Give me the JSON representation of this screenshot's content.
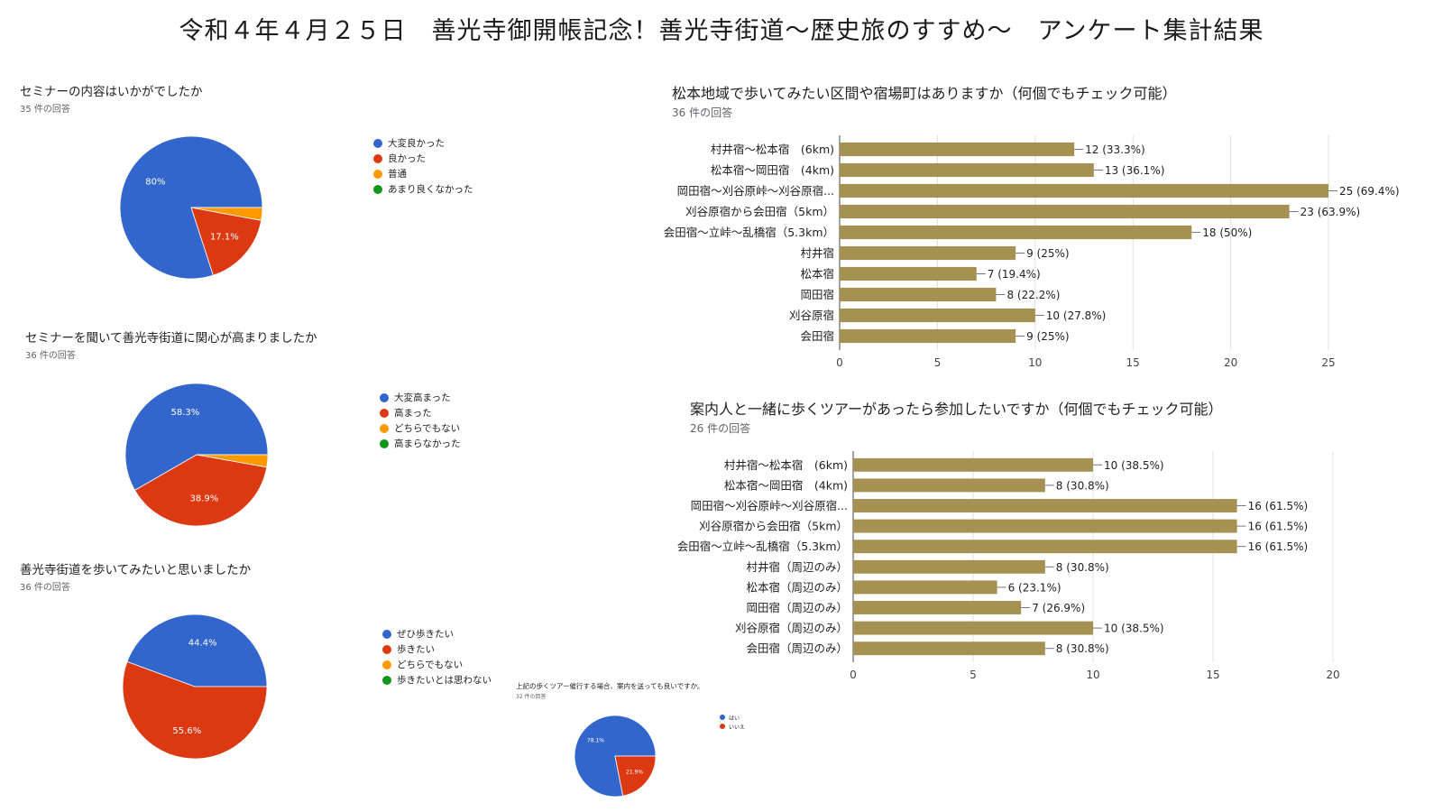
{
  "page_title": "令和４年４月２５日　善光寺御開帳記念！善光寺街道～歴史旅のすすめ～　アンケート集計結果",
  "colors": {
    "blue": "#3366cc",
    "red": "#dc3912",
    "orange": "#ff9900",
    "green": "#109618",
    "bar": "#a59152"
  },
  "chart_data": [
    {
      "type": "pie",
      "title": "セミナーの内容はいかがでしたか",
      "count_label": "35 件の回答",
      "categories": [
        "大変良かった",
        "良かった",
        "普通",
        "あまり良くなかった"
      ],
      "values": [
        80,
        17.1,
        2.9,
        0
      ],
      "labels": [
        "80%",
        "17.1%",
        "",
        ""
      ]
    },
    {
      "type": "pie",
      "title": "セミナーを聞いて善光寺街道に関心が高まりましたか",
      "count_label": "36 件の回答",
      "categories": [
        "大変高まった",
        "高まった",
        "どちらでもない",
        "高まらなかった"
      ],
      "values": [
        58.3,
        38.9,
        2.8,
        0
      ],
      "labels": [
        "58.3%",
        "38.9%",
        "",
        ""
      ]
    },
    {
      "type": "pie",
      "title": "善光寺街道を歩いてみたいと思いましたか",
      "count_label": "36 件の回答",
      "categories": [
        "ぜひ歩きたい",
        "歩きたい",
        "どちらでもない",
        "歩きたいとは思わない"
      ],
      "values": [
        44.4,
        55.6,
        0,
        0
      ],
      "labels": [
        "44.4%",
        "55.6%",
        "",
        ""
      ]
    },
    {
      "type": "pie",
      "title": "上記の歩くツアー催行する場合、案内を送っても良いですか。",
      "count_label": "32 件の回答",
      "categories": [
        "はい",
        "いいえ"
      ],
      "values": [
        78.1,
        21.9
      ],
      "labels": [
        "78.1%",
        "21.9%"
      ]
    },
    {
      "type": "bar",
      "title": "松本地域で歩いてみたい区間や宿場町はありますか（何個でもチェック可能）",
      "count_label": "36 件の回答",
      "categories": [
        "村井宿～松本宿　(6km)",
        "松本宿～岡田宿　(4km)",
        "岡田宿～刈谷原峠～刈谷原宿...",
        "刈谷原宿から会田宿（5km）",
        "会田宿～立峠～乱橋宿（5.3km）",
        "村井宿",
        "松本宿",
        "岡田宿",
        "刈谷原宿",
        "会田宿"
      ],
      "values": [
        12,
        13,
        25,
        23,
        18,
        9,
        7,
        8,
        10,
        9
      ],
      "labels": [
        "12 (33.3%)",
        "13 (36.1%)",
        "25 (69.4%)",
        "23 (63.9%)",
        "18 (50%)",
        "9 (25%)",
        "7 (19.4%)",
        "8 (22.2%)",
        "10 (27.8%)",
        "9 (25%)"
      ],
      "xlim": [
        0,
        25
      ],
      "ticks": [
        0,
        5,
        10,
        15,
        20,
        25
      ]
    },
    {
      "type": "bar",
      "title": "案内人と一緒に歩くツアーがあったら参加したいですか（何個でもチェック可能）",
      "count_label": "26 件の回答",
      "categories": [
        "村井宿～松本宿　(6km)",
        "松本宿～岡田宿　(4km)",
        "岡田宿～刈谷原峠～刈谷原宿...",
        "刈谷原宿から会田宿（5km）",
        "会田宿～立峠～乱橋宿（5.3km）",
        "村井宿（周辺のみ）",
        "松本宿（周辺のみ）",
        "岡田宿（周辺のみ）",
        "刈谷原宿（周辺のみ）",
        "会田宿（周辺のみ）"
      ],
      "values": [
        10,
        8,
        16,
        16,
        16,
        8,
        6,
        7,
        10,
        8
      ],
      "labels": [
        "10 (38.5%)",
        "8 (30.8%)",
        "16 (61.5%)",
        "16 (61.5%)",
        "16 (61.5%)",
        "8 (30.8%)",
        "6 (23.1%)",
        "7 (26.9%)",
        "10 (38.5%)",
        "8 (30.8%)"
      ],
      "xlim": [
        0,
        20
      ],
      "ticks": [
        0,
        5,
        10,
        15,
        20
      ]
    }
  ]
}
